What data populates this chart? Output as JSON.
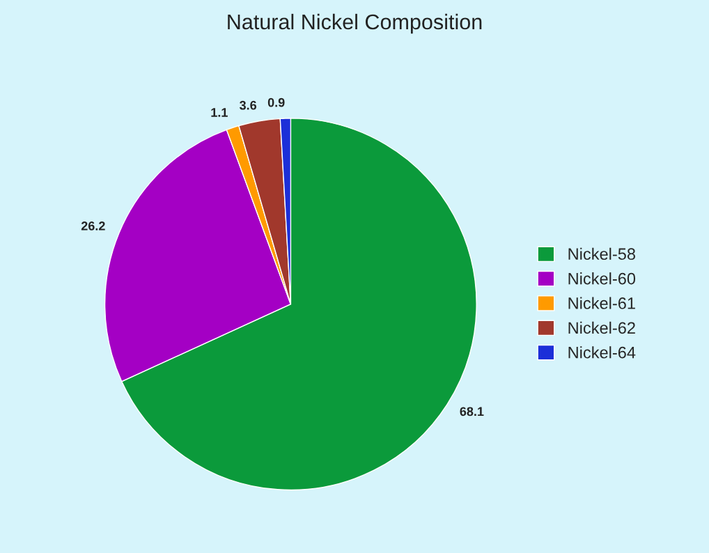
{
  "chart_data": {
    "type": "pie",
    "title": "Natural Nickel Composition",
    "categories": [
      "Nickel-58",
      "Nickel-60",
      "Nickel-61",
      "Nickel-62",
      "Nickel-64"
    ],
    "values": [
      68.1,
      26.2,
      1.1,
      3.6,
      0.9
    ],
    "colors": [
      "#0b9a3b",
      "#a400c4",
      "#ff9a00",
      "#a1382c",
      "#1c2fd8"
    ],
    "data_labels": true,
    "legend": "right"
  }
}
